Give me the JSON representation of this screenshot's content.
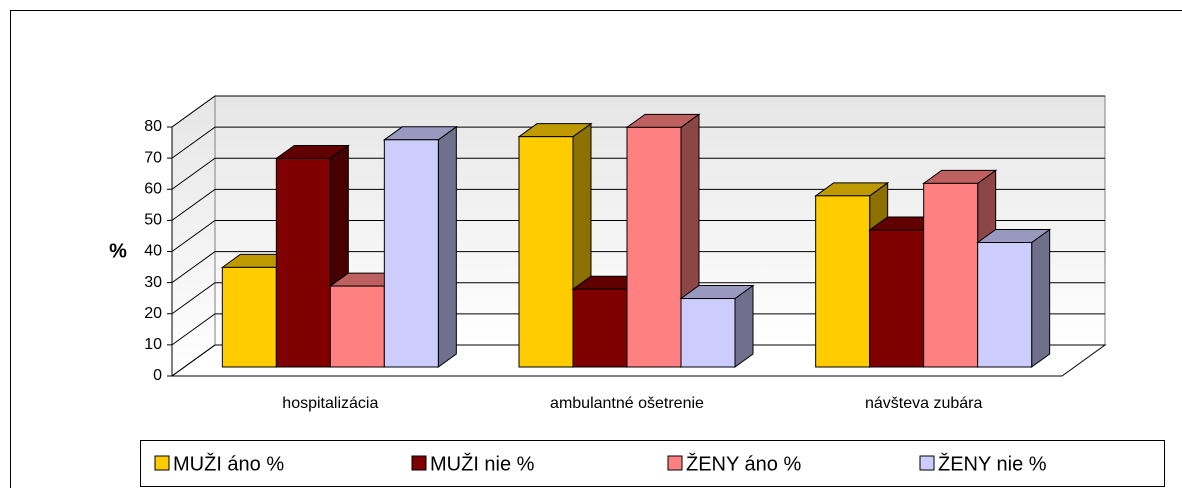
{
  "chart_data": {
    "type": "bar3d",
    "ylabel": "%",
    "categories": [
      "hospitalizácia",
      "ambulantné ošetrenie",
      "návšteva zubára"
    ],
    "series": [
      {
        "name": "MUŽI áno %",
        "color": "#ffcc00",
        "values": [
          32,
          74,
          55
        ]
      },
      {
        "name": "MUŽI nie %",
        "color": "#800000",
        "values": [
          67,
          25,
          44
        ]
      },
      {
        "name": "ŽENY áno %",
        "color": "#ff8080",
        "values": [
          26,
          77,
          59
        ]
      },
      {
        "name": "ŽENY nie %",
        "color": "#ccccff",
        "values": [
          73,
          22,
          40
        ]
      }
    ],
    "ylim": [
      0,
      80
    ],
    "yticks": [
      0,
      10,
      20,
      30,
      40,
      50,
      60,
      70,
      80
    ],
    "grid": true,
    "legend": "bottom"
  }
}
